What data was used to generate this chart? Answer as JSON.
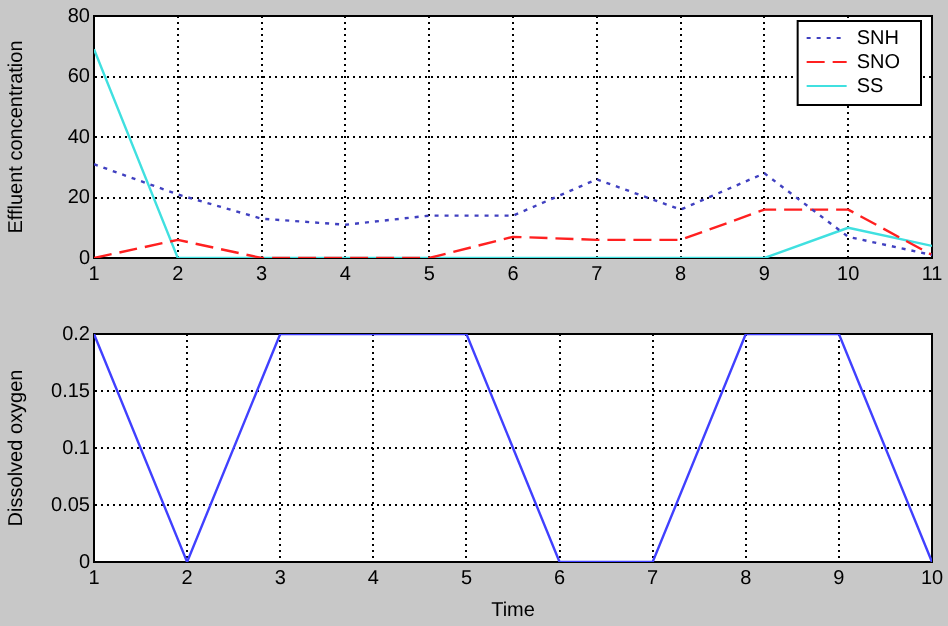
{
  "chart_data": [
    {
      "type": "line",
      "ylabel": "Effluent concentration",
      "x": [
        1,
        2,
        3,
        4,
        5,
        6,
        7,
        8,
        9,
        10,
        11
      ],
      "xlim": [
        1,
        11
      ],
      "xticks": [
        1,
        2,
        3,
        4,
        5,
        6,
        7,
        8,
        9,
        10,
        11
      ],
      "ylim": [
        0,
        80
      ],
      "yticks": [
        0,
        20,
        40,
        60,
        80
      ],
      "grid": true,
      "legend": "top right",
      "series": [
        {
          "name": "SNH",
          "color": "#4040c0",
          "line_style": "dotted",
          "values": [
            31,
            21,
            13,
            11,
            14,
            14,
            26,
            16,
            28,
            7,
            1
          ]
        },
        {
          "name": "SNO",
          "color": "#ff2020",
          "line_style": "dashed",
          "values": [
            0,
            6,
            0,
            0,
            0,
            7,
            6,
            6,
            16,
            16,
            1
          ]
        },
        {
          "name": "SS",
          "color": "#40e0e0",
          "line_style": "solid",
          "values": [
            69,
            0,
            0,
            0,
            0,
            0,
            0,
            0,
            0,
            10,
            4
          ]
        }
      ]
    },
    {
      "type": "line",
      "xlabel": "Time",
      "ylabel": "Dissolved oxygen",
      "x": [
        1,
        2,
        3,
        4,
        5,
        6,
        7,
        8,
        9,
        10
      ],
      "xlim": [
        1,
        10
      ],
      "xticks": [
        1,
        2,
        3,
        4,
        5,
        6,
        7,
        8,
        9,
        10
      ],
      "ylim": [
        0,
        0.2
      ],
      "yticks": [
        0,
        0.05,
        0.1,
        0.15,
        0.2
      ],
      "grid": true,
      "color": "#4040ff",
      "values": [
        0.2,
        0,
        0.2,
        0.2,
        0.2,
        0,
        0,
        0.2,
        0.2,
        0
      ]
    }
  ]
}
